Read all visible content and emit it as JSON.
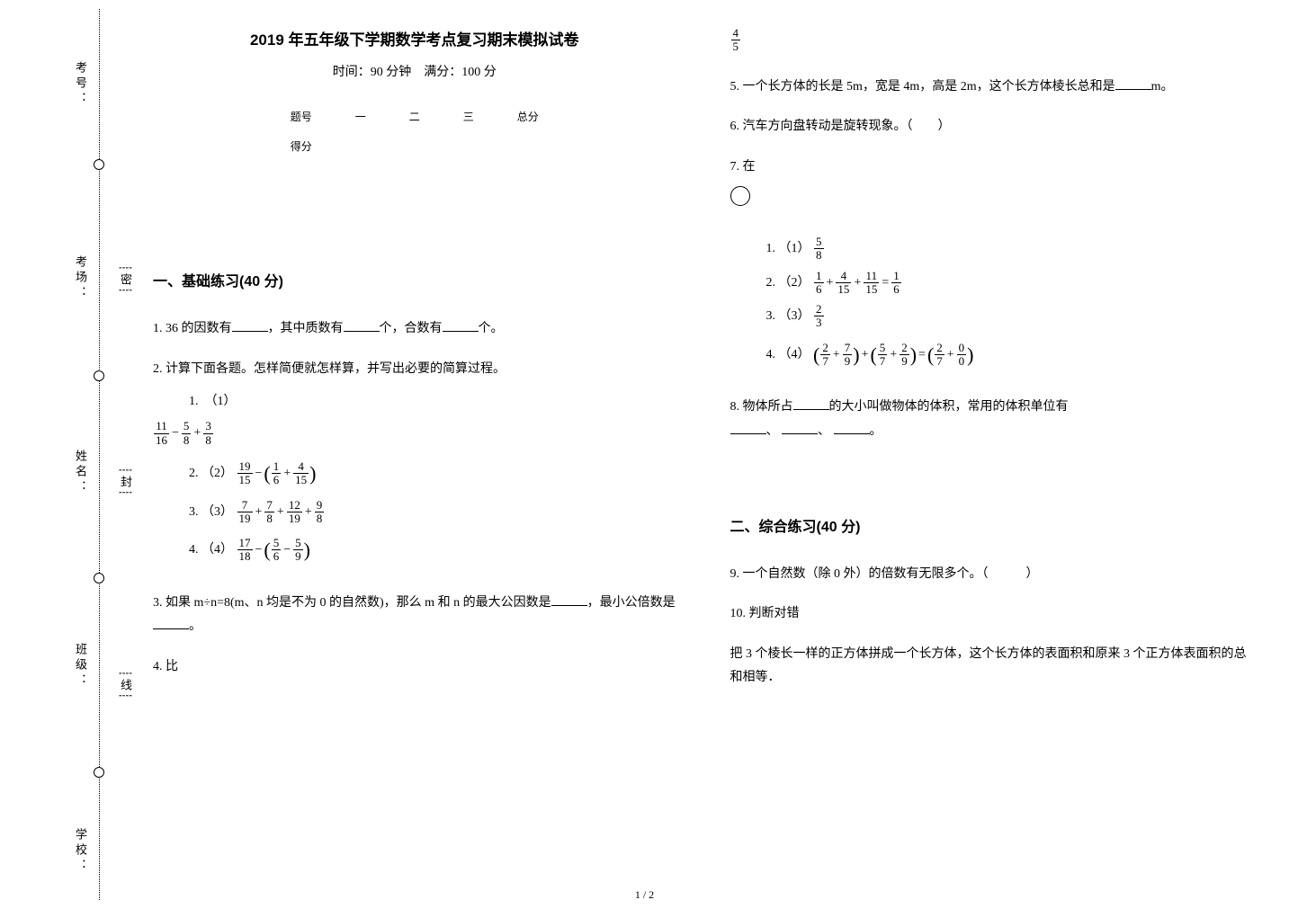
{
  "binding": {
    "labels": {
      "exam_id": "考号：",
      "room": "考场：",
      "name": "姓名：",
      "class": "班级：",
      "school": "学校："
    },
    "seal_chars": [
      "密",
      "封",
      "线"
    ],
    "circle_positions_pct": [
      17,
      41,
      64,
      86
    ],
    "label_positions_pct": [
      8,
      30,
      52,
      74,
      95
    ],
    "seal_positions_pct": [
      30,
      53,
      76
    ]
  },
  "header": {
    "title": "2019 年五年级下学期数学考点复习期末模拟试卷",
    "subtitle_time": "时间：90 分钟",
    "subtitle_score": "满分：100 分"
  },
  "score_table": {
    "headers": [
      "题号",
      "一",
      "二",
      "三",
      "总分"
    ],
    "row_label": "得分"
  },
  "sections": {
    "s1": {
      "title": "一、基础练习(40 分)"
    },
    "s2": {
      "title": "二、综合练习(40 分)"
    }
  },
  "questions": {
    "q1": {
      "num": "1.",
      "pre": "36 的因数有",
      "mid1": "，其中质数有",
      "mid2": "个，合数有",
      "post": "个。"
    },
    "q2": {
      "num": "2.",
      "text": "计算下面各题。怎样简便就怎样算，并写出必要的简算过程。",
      "items": {
        "i1": {
          "label": "1.",
          "tag": "（1）"
        },
        "i2": {
          "label": "2.",
          "tag": "（2）"
        },
        "i3": {
          "label": "3.",
          "tag": "（3）"
        },
        "i4": {
          "label": "4.",
          "tag": "（4）"
        }
      }
    },
    "q3": {
      "num": "3.",
      "pre": "如果 m÷n=8(m、n 均是不为 0 的自然数)，那么 m 和 n 的最大公因数是",
      "mid": "，最小公倍数是",
      "post": "。"
    },
    "q4": {
      "num": "4.",
      "text": "比"
    },
    "q4frac": {
      "num": "4",
      "den": "5"
    },
    "q5": {
      "num": "5.",
      "pre": "一个长方体的长是 5m，宽是 4m，高是 2m，这个长方体棱长总和是",
      "post": "m。"
    },
    "q6": {
      "num": "6.",
      "text": "汽车方向盘转动是旋转现象。（　　）"
    },
    "q7": {
      "num": "7.",
      "text": "在",
      "items": {
        "i1": {
          "label": "1.",
          "tag": "（1）"
        },
        "i2": {
          "label": "2.",
          "tag": "（2）"
        },
        "i3": {
          "label": "3.",
          "tag": "（3）"
        },
        "i4": {
          "label": "4.",
          "tag": "（4）"
        }
      }
    },
    "q8": {
      "num": "8.",
      "pre": "物体所占",
      "mid": "的大小叫做物体的体积，常用的体积单位有",
      "post": "。",
      "sep": "、"
    },
    "q9": {
      "num": "9.",
      "text": "一个自然数（除 0 外）的倍数有无限多个。（　　　）"
    },
    "q10": {
      "num": "10.",
      "text": "判断对错",
      "body": "把 3 个棱长一样的正方体拼成一个长方体，这个长方体的表面积和原来 3 个正方体表面积的总和相等．"
    }
  },
  "fractions": {
    "q2_1": [
      {
        "num": "11",
        "den": "16"
      },
      {
        "op": "−"
      },
      {
        "num": "5",
        "den": "8"
      },
      {
        "op": "+"
      },
      {
        "num": "3",
        "den": "8"
      }
    ],
    "q2_2": [
      {
        "num": "19",
        "den": "15"
      },
      {
        "op": "−"
      },
      {
        "open": true
      },
      {
        "num": "1",
        "den": "6"
      },
      {
        "op": "+"
      },
      {
        "num": "4",
        "den": "15"
      },
      {
        "close": true
      }
    ],
    "q2_3": [
      {
        "num": "7",
        "den": "19"
      },
      {
        "op": "+"
      },
      {
        "num": "7",
        "den": "8"
      },
      {
        "op": "+"
      },
      {
        "num": "12",
        "den": "19"
      },
      {
        "op": "+"
      },
      {
        "num": "9",
        "den": "8"
      }
    ],
    "q2_4": [
      {
        "num": "17",
        "den": "18"
      },
      {
        "op": "−"
      },
      {
        "open": true
      },
      {
        "num": "5",
        "den": "6"
      },
      {
        "op": "−"
      },
      {
        "num": "5",
        "den": "9"
      },
      {
        "close": true
      }
    ],
    "q7_1": [
      {
        "num": "5",
        "den": "8"
      }
    ],
    "q7_2": [
      {
        "num": "1",
        "den": "6"
      },
      {
        "op": "+"
      },
      {
        "num": "4",
        "den": "15"
      },
      {
        "op": "+"
      },
      {
        "num": "11",
        "den": "15"
      },
      {
        "op": "="
      },
      {
        "num": "1",
        "den": "6"
      }
    ],
    "q7_3": [
      {
        "num": "2",
        "den": "3"
      }
    ],
    "q7_4": [
      {
        "open": true
      },
      {
        "num": "2",
        "den": "7"
      },
      {
        "op": "+"
      },
      {
        "num": "7",
        "den": "9"
      },
      {
        "close": true
      },
      {
        "op": "+"
      },
      {
        "open": true
      },
      {
        "num": "5",
        "den": "7"
      },
      {
        "op": "+"
      },
      {
        "num": "2",
        "den": "9"
      },
      {
        "close": true
      },
      {
        "op": "="
      },
      {
        "open": true
      },
      {
        "num": "2",
        "den": "7"
      },
      {
        "op": "+"
      },
      {
        "num": "0",
        "den": "0"
      },
      {
        "close": true
      }
    ]
  },
  "page_number": "1 / 2"
}
